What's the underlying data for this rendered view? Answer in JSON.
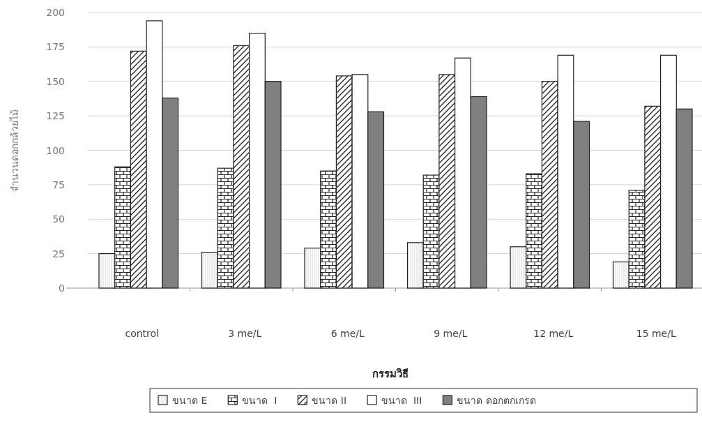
{
  "chart_data": {
    "type": "bar",
    "xlabel": "กรรมวิธี",
    "ylabel": "จำนวนดอกกล้วยไม้",
    "categories": [
      "control",
      "3 me/L",
      "6 me/L",
      "9 me/L",
      "12 me/L",
      "15 me/L"
    ],
    "series": [
      {
        "name": "ขนาด E",
        "color": "#222222",
        "values": [
          25,
          26,
          29,
          33,
          30,
          19
        ]
      },
      {
        "name": "ขนาด  I",
        "color": "#222222",
        "values": [
          88,
          87,
          85,
          82,
          83,
          71
        ]
      },
      {
        "name": "ขนาด II",
        "color": "#222222",
        "values": [
          172,
          176,
          154,
          155,
          150,
          132
        ]
      },
      {
        "name": "ขนาด  III",
        "color": "#ffffff",
        "values": [
          194,
          185,
          155,
          167,
          169,
          169
        ]
      },
      {
        "name": "ขนาด ดอกตกเกรด",
        "color": "#808080",
        "values": [
          138,
          150,
          128,
          139,
          121,
          130
        ]
      }
    ],
    "ylim": [
      0,
      200
    ],
    "yticks": [
      0,
      25,
      50,
      75,
      100,
      125,
      150,
      175,
      200
    ],
    "grid": "y",
    "legend": "bottom"
  }
}
